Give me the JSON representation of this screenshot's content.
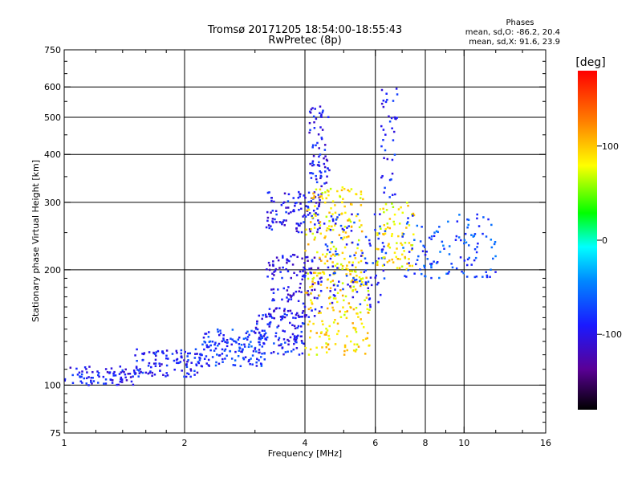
{
  "chart_data": {
    "type": "scatter",
    "title": "Tromsø 20171205 18:54:00-18:55:43",
    "subtitle": "RwPretec (8p)",
    "xlabel": "Frequency [MHz]",
    "ylabel": "Stationary phase Virtual Height [km]",
    "x_scale": "log",
    "y_scale": "log",
    "xlim": [
      1,
      16
    ],
    "ylim": [
      75,
      750
    ],
    "x_ticks": [
      1,
      2,
      4,
      6,
      8,
      10,
      16
    ],
    "x_tick_labels": [
      "1",
      "2",
      "4",
      "6",
      "8",
      "10",
      "16"
    ],
    "y_ticks": [
      75,
      100,
      200,
      300,
      400,
      500,
      600,
      750
    ],
    "y_tick_labels": [
      "75",
      "100",
      "200",
      "300",
      "400",
      "500",
      "600",
      "750"
    ],
    "grid": true,
    "stats_header": "Phases",
    "stats": [
      "mean, sd,O: -86.2, 20.4",
      "mean, sd,X:  91.6, 23.9"
    ],
    "colorbar": {
      "label": "[deg]",
      "range": [
        -180,
        180
      ],
      "ticks": [
        100,
        0,
        -100
      ],
      "tick_labels": [
        "100",
        "0",
        "-100"
      ]
    },
    "color_legend": "phase in degrees: dark blue/violet ≈ -100, cyan ≈ 0, yellow ≈ +100",
    "point_groups": [
      {
        "f": [
          1.0,
          1.5
        ],
        "h": [
          100,
          112
        ],
        "phase": -95,
        "count": 80
      },
      {
        "f": [
          1.5,
          2.2
        ],
        "h": [
          105,
          125
        ],
        "phase": -90,
        "count": 110
      },
      {
        "f": [
          2.2,
          3.2
        ],
        "h": [
          112,
          140
        ],
        "phase": -80,
        "count": 140
      },
      {
        "f": [
          3.0,
          4.0
        ],
        "h": [
          120,
          155
        ],
        "phase": -90,
        "count": 110
      },
      {
        "f": [
          3.2,
          4.4
        ],
        "h": [
          150,
          220
        ],
        "phase": -100,
        "count": 140
      },
      {
        "f": [
          3.2,
          4.5
        ],
        "h": [
          250,
          320
        ],
        "phase": -95,
        "count": 110
      },
      {
        "f": [
          4.0,
          5.8
        ],
        "h": [
          120,
          200
        ],
        "phase": 90,
        "count": 170
      },
      {
        "f": [
          4.0,
          5.6
        ],
        "h": [
          200,
          330
        ],
        "phase": 90,
        "count": 140
      },
      {
        "f": [
          4.1,
          4.6
        ],
        "h": [
          330,
          540
        ],
        "phase": -95,
        "count": 70
      },
      {
        "f": [
          4.5,
          6.4
        ],
        "h": [
          160,
          280
        ],
        "phase": -85,
        "count": 110
      },
      {
        "f": [
          6.0,
          7.5
        ],
        "h": [
          200,
          300
        ],
        "phase": 85,
        "count": 80
      },
      {
        "f": [
          7.0,
          12.0
        ],
        "h": [
          190,
          280
        ],
        "phase": -70,
        "count": 120
      },
      {
        "f": [
          6.2,
          6.8
        ],
        "h": [
          300,
          600
        ],
        "phase": -90,
        "count": 40
      }
    ]
  }
}
